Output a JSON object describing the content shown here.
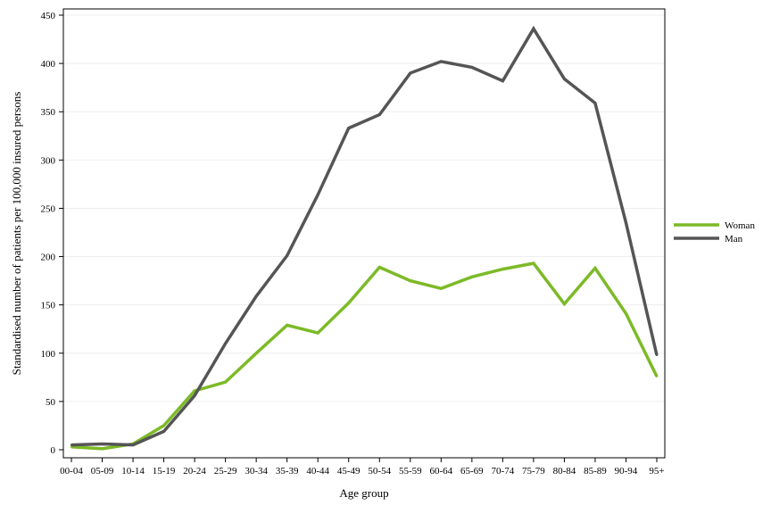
{
  "chart_data": {
    "type": "line",
    "title": "",
    "xlabel": "Age group",
    "ylabel": "Standardised number of patients per 100,000 insured persons",
    "categories": [
      "00-04",
      "05-09",
      "10-14",
      "15-19",
      "20-24",
      "25-29",
      "30-34",
      "35-39",
      "40-44",
      "45-49",
      "50-54",
      "55-59",
      "60-64",
      "65-69",
      "70-74",
      "75-79",
      "80-84",
      "85-89",
      "90-94",
      "95+"
    ],
    "ylim": [
      0,
      450
    ],
    "yticks": [
      0,
      50,
      100,
      150,
      200,
      250,
      300,
      350,
      400,
      450
    ],
    "grid": true,
    "legend_position": "right",
    "series": [
      {
        "name": "Woman",
        "color": "#7cba27",
        "values": [
          3,
          1,
          6,
          25,
          61,
          70,
          100,
          129,
          121,
          152,
          189,
          175,
          167,
          179,
          187,
          193,
          151,
          188,
          141,
          76
        ]
      },
      {
        "name": "Man",
        "color": "#555555",
        "values": [
          5,
          6,
          5,
          19,
          56,
          110,
          159,
          201,
          264,
          333,
          347,
          390,
          402,
          396,
          382,
          436,
          384,
          359,
          235,
          98
        ]
      }
    ]
  }
}
